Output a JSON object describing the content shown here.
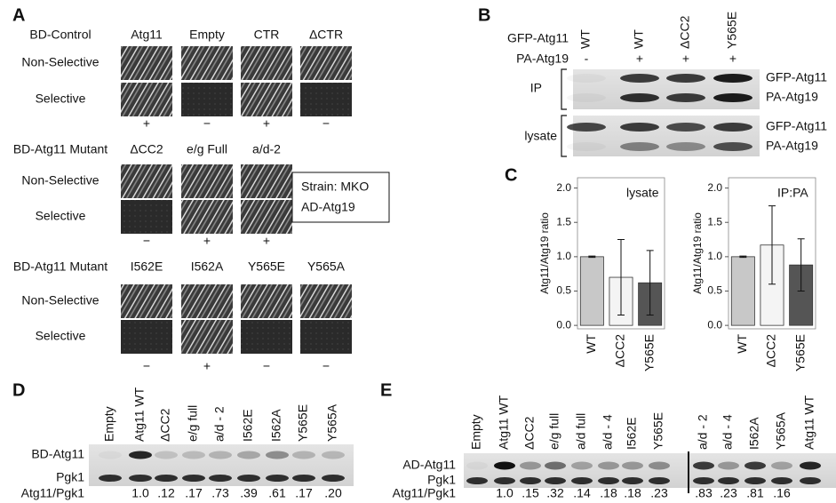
{
  "panel_a": {
    "label": "A",
    "groups": [
      {
        "name": "BD-Control",
        "rows": [
          "Non-Selective",
          "Selective"
        ],
        "columns": [
          "Atg11",
          "Empty",
          "CTR",
          "ΔCTR"
        ],
        "results": [
          "+",
          "−",
          "+",
          "−"
        ]
      },
      {
        "name": "BD-Atg11 Mutant",
        "rows": [
          "Non-Selective",
          "Selective"
        ],
        "columns": [
          "ΔCC2",
          "e/g Full",
          "a/d-2"
        ],
        "results": [
          "−",
          "+",
          "+"
        ]
      },
      {
        "name": "BD-Atg11 Mutant",
        "rows": [
          "Non-Selective",
          "Selective"
        ],
        "columns": [
          "I562E",
          "I562A",
          "Y565E",
          "Y565A"
        ],
        "results": [
          "−",
          "+",
          "−",
          "−"
        ]
      }
    ],
    "strain_box": [
      "Strain: MKO",
      "AD-Atg19"
    ]
  },
  "panel_b": {
    "label": "B",
    "row_labels": [
      "GFP-Atg11",
      "PA-Atg19"
    ],
    "lanes": [
      "WT",
      "WT",
      "ΔCC2",
      "Y565E"
    ],
    "pa_atg19": [
      "-",
      "+",
      "+",
      "+"
    ],
    "ip": {
      "label": "IP",
      "bands": [
        "GFP-Atg11",
        "PA-Atg19"
      ]
    },
    "lysate": {
      "label": "lysate",
      "bands": [
        "GFP-Atg11",
        "PA-Atg19"
      ]
    }
  },
  "panel_c": {
    "label": "C",
    "charts": [
      {
        "type": "bar",
        "title": "lysate",
        "y_label": "Atg11/Atg19 ratio",
        "categories": [
          "WT",
          "ΔCC2",
          "Y565E"
        ],
        "values": [
          1.0,
          0.7,
          0.62
        ],
        "errors": [
          0.01,
          0.55,
          0.47
        ],
        "colors": [
          "#c8c8c8",
          "#f4f4f4",
          "#555555"
        ],
        "ylim": [
          -0.05,
          2.15
        ],
        "yticks": [
          {
            "value": 0,
            "label": "0.0"
          },
          {
            "value": 0.5,
            "label": "0.5"
          },
          {
            "value": 1,
            "label": "1.0"
          },
          {
            "value": 1.5,
            "label": "1.5"
          },
          {
            "value": 2,
            "label": "2.0"
          }
        ]
      },
      {
        "type": "bar",
        "title": "IP:PA",
        "y_label": "Atg11/Atg19 ratio",
        "categories": [
          "WT",
          "ΔCC2",
          "Y565E"
        ],
        "values": [
          1.0,
          1.17,
          0.88
        ],
        "errors": [
          0.01,
          0.57,
          0.38
        ],
        "colors": [
          "#c8c8c8",
          "#f4f4f4",
          "#555555"
        ],
        "ylim": [
          -0.05,
          2.15
        ],
        "yticks": [
          {
            "value": 0,
            "label": "0.0"
          },
          {
            "value": 0.5,
            "label": "0.5"
          },
          {
            "value": 1,
            "label": "1.0"
          },
          {
            "value": 1.5,
            "label": "1.5"
          },
          {
            "value": 2,
            "label": "2.0"
          }
        ]
      }
    ]
  },
  "panel_d": {
    "label": "D",
    "lanes": [
      "Empty",
      "Atg11 WT",
      "ΔCC2",
      "e/g full",
      "a/d - 2",
      "I562E",
      "I562A",
      "Y565E",
      "Y565A"
    ],
    "rows": [
      "BD-Atg11",
      "Pgk1"
    ],
    "ratio_label": "Atg11/Pgk1",
    "ratios": [
      null,
      "1.0",
      ".12",
      ".17",
      ".73",
      ".39",
      ".61",
      ".17",
      ".20"
    ]
  },
  "panel_e": {
    "label": "E",
    "lanes": [
      "Empty",
      "Atg11 WT",
      "ΔCC2",
      "e/g full",
      "a/d full",
      "a/d - 4",
      "I562E",
      "Y565E",
      "a/d - 2",
      "a/d - 4",
      "I562A",
      "Y565A",
      "Atg11 WT"
    ],
    "rows": [
      "AD-Atg11",
      "Pgk1"
    ],
    "ratio_label": "Atg11/Pgk1",
    "ratios": [
      null,
      "1.0",
      ".15",
      ".32",
      ".14",
      ".18",
      ".18",
      ".23",
      ".83",
      ".23",
      ".81",
      ".16",
      null
    ]
  }
}
